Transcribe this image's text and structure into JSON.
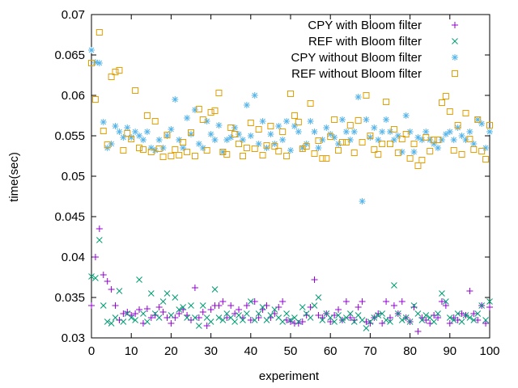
{
  "chart_data": {
    "type": "scatter",
    "title": "",
    "xlabel": "experiment",
    "ylabel": "time(sec)",
    "xlim": [
      0,
      100
    ],
    "ylim": [
      0.03,
      0.07
    ],
    "xticks": [
      "0",
      "10",
      "20",
      "30",
      "40",
      "50",
      "60",
      "70",
      "80",
      "90",
      "100"
    ],
    "yticks": [
      "0.03",
      "0.035",
      "0.04",
      "0.045",
      "0.05",
      "0.055",
      "0.06",
      "0.065",
      "0.07"
    ],
    "grid": false,
    "legend_position": "top-right",
    "series": [
      {
        "name": "CPY with Bloom filter",
        "marker": "plus",
        "color": "#9400d3",
        "x": [
          0,
          1,
          2,
          3,
          4,
          5,
          6,
          7,
          8,
          9,
          10,
          11,
          12,
          13,
          14,
          15,
          16,
          17,
          18,
          19,
          20,
          21,
          22,
          23,
          24,
          25,
          26,
          27,
          28,
          29,
          30,
          31,
          32,
          33,
          34,
          35,
          36,
          37,
          38,
          39,
          40,
          41,
          42,
          43,
          44,
          45,
          46,
          47,
          48,
          49,
          50,
          51,
          52,
          53,
          54,
          55,
          56,
          57,
          58,
          59,
          60,
          61,
          62,
          63,
          64,
          65,
          66,
          67,
          68,
          69,
          70,
          71,
          72,
          73,
          74,
          75,
          76,
          77,
          78,
          79,
          80,
          81,
          82,
          83,
          84,
          85,
          86,
          87,
          88,
          89,
          90,
          91,
          92,
          93,
          94,
          95,
          96,
          97,
          98,
          99,
          100
        ],
        "values": [
          0.034,
          0.04,
          0.0435,
          0.0378,
          0.037,
          0.036,
          0.034,
          0.0322,
          0.033,
          0.0332,
          0.0328,
          0.033,
          0.0335,
          0.0318,
          0.0336,
          0.0325,
          0.0328,
          0.0338,
          0.0332,
          0.0325,
          0.0318,
          0.0325,
          0.033,
          0.0335,
          0.0328,
          0.0322,
          0.0362,
          0.0325,
          0.0332,
          0.0315,
          0.0335,
          0.034,
          0.034,
          0.0345,
          0.0325,
          0.034,
          0.033,
          0.0335,
          0.0325,
          0.034,
          0.0322,
          0.0345,
          0.0325,
          0.0335,
          0.034,
          0.0325,
          0.033,
          0.0338,
          0.0345,
          0.0322,
          0.032,
          0.0318,
          0.0318,
          0.032,
          0.0328,
          0.0338,
          0.0372,
          0.0328,
          0.0325,
          0.033,
          0.032,
          0.0328,
          0.0335,
          0.0322,
          0.0345,
          0.0325,
          0.0322,
          0.0338,
          0.0345,
          0.032,
          0.0318,
          0.0325,
          0.033,
          0.0318,
          0.0345,
          0.0325,
          0.034,
          0.033,
          0.0345,
          0.0325,
          0.032,
          0.0338,
          0.0308,
          0.0325,
          0.0322,
          0.0318,
          0.0328,
          0.0325,
          0.0345,
          0.034,
          0.0318,
          0.0325,
          0.0322,
          0.033,
          0.0328,
          0.0358,
          0.033,
          0.0322,
          0.034,
          0.0318,
          0.0338
        ]
      },
      {
        "name": "REF with Bloom filter",
        "marker": "x",
        "color": "#009e73",
        "x": [
          0,
          1,
          2,
          3,
          4,
          5,
          6,
          7,
          8,
          9,
          10,
          11,
          12,
          13,
          14,
          15,
          16,
          17,
          18,
          19,
          20,
          21,
          22,
          23,
          24,
          25,
          26,
          27,
          28,
          29,
          30,
          31,
          32,
          33,
          34,
          35,
          36,
          37,
          38,
          39,
          40,
          41,
          42,
          43,
          44,
          45,
          46,
          47,
          48,
          49,
          50,
          51,
          52,
          53,
          54,
          55,
          56,
          57,
          58,
          59,
          60,
          61,
          62,
          63,
          64,
          65,
          66,
          67,
          68,
          69,
          70,
          71,
          72,
          73,
          74,
          75,
          76,
          77,
          78,
          79,
          80,
          81,
          82,
          83,
          84,
          85,
          86,
          87,
          88,
          89,
          90,
          91,
          92,
          93,
          94,
          95,
          96,
          97,
          98,
          99,
          100
        ],
        "values": [
          0.0376,
          0.0374,
          0.0421,
          0.034,
          0.032,
          0.0318,
          0.0325,
          0.0358,
          0.032,
          0.033,
          0.0325,
          0.0322,
          0.0372,
          0.033,
          0.032,
          0.0355,
          0.033,
          0.0325,
          0.0345,
          0.0355,
          0.0328,
          0.035,
          0.0335,
          0.0338,
          0.0325,
          0.034,
          0.0325,
          0.0315,
          0.034,
          0.0325,
          0.032,
          0.036,
          0.0325,
          0.0322,
          0.033,
          0.0325,
          0.032,
          0.0328,
          0.0322,
          0.033,
          0.0345,
          0.0322,
          0.033,
          0.0338,
          0.0322,
          0.0328,
          0.0335,
          0.0325,
          0.032,
          0.033,
          0.0322,
          0.0325,
          0.032,
          0.0338,
          0.033,
          0.0325,
          0.034,
          0.035,
          0.0322,
          0.033,
          0.0325,
          0.032,
          0.0328,
          0.0322,
          0.0325,
          0.033,
          0.032,
          0.0328,
          0.0322,
          0.0312,
          0.032,
          0.0325,
          0.0328,
          0.033,
          0.0322,
          0.032,
          0.0365,
          0.033,
          0.0322,
          0.0325,
          0.032,
          0.034,
          0.033,
          0.0322,
          0.0328,
          0.0325,
          0.032,
          0.033,
          0.0355,
          0.0345,
          0.0325,
          0.0322,
          0.033,
          0.032,
          0.0328,
          0.0325,
          0.0322,
          0.033,
          0.034,
          0.0322,
          0.0345
        ]
      },
      {
        "name": "CPY without Bloom filter",
        "marker": "star",
        "color": "#56b4e9",
        "x": [
          0,
          1,
          2,
          3,
          4,
          5,
          6,
          7,
          8,
          9,
          10,
          11,
          12,
          13,
          14,
          15,
          16,
          17,
          18,
          19,
          20,
          21,
          22,
          23,
          24,
          25,
          26,
          27,
          28,
          29,
          30,
          31,
          32,
          33,
          34,
          35,
          36,
          37,
          38,
          39,
          40,
          41,
          42,
          43,
          44,
          45,
          46,
          47,
          48,
          49,
          50,
          51,
          52,
          53,
          54,
          55,
          56,
          57,
          58,
          59,
          60,
          61,
          62,
          63,
          64,
          65,
          66,
          67,
          68,
          69,
          70,
          71,
          72,
          73,
          74,
          75,
          76,
          77,
          78,
          79,
          80,
          81,
          82,
          83,
          84,
          85,
          86,
          87,
          88,
          89,
          90,
          91,
          92,
          93,
          94,
          95,
          96,
          97,
          98,
          99,
          100
        ],
        "values": [
          0.0656,
          0.0641,
          0.064,
          0.0567,
          0.0535,
          0.054,
          0.0562,
          0.0555,
          0.0548,
          0.056,
          0.0548,
          0.0555,
          0.055,
          0.0545,
          0.0555,
          0.0535,
          0.0532,
          0.0545,
          0.0535,
          0.055,
          0.0558,
          0.0595,
          0.0545,
          0.0535,
          0.0572,
          0.0552,
          0.0582,
          0.054,
          0.0535,
          0.0568,
          0.0552,
          0.0545,
          0.0563,
          0.053,
          0.0545,
          0.0548,
          0.056,
          0.0552,
          0.0545,
          0.0588,
          0.055,
          0.06,
          0.054,
          0.0568,
          0.0535,
          0.0552,
          0.054,
          0.0562,
          0.0545,
          0.0568,
          0.0532,
          0.0562,
          0.0555,
          0.0535,
          0.054,
          0.0568,
          0.0555,
          0.0535,
          0.0545,
          0.056,
          0.0552,
          0.0548,
          0.054,
          0.057,
          0.0555,
          0.0545,
          0.0555,
          0.0598,
          0.0469,
          0.057,
          0.0548,
          0.056,
          0.0545,
          0.0555,
          0.057,
          0.0555,
          0.0545,
          0.055,
          0.053,
          0.0575,
          0.0555,
          0.053,
          0.0548,
          0.0545,
          0.0555,
          0.0545,
          0.054,
          0.0535,
          0.0545,
          0.0552,
          0.0555,
          0.0545,
          0.056,
          0.055,
          0.0545,
          0.0555,
          0.054,
          0.057,
          0.0565,
          0.0535,
          0.0555
        ]
      },
      {
        "name": "REF without Bloom filter",
        "marker": "square",
        "color": "#e69f00",
        "x": [
          0,
          1,
          2,
          3,
          4,
          5,
          6,
          7,
          8,
          9,
          10,
          11,
          12,
          13,
          14,
          15,
          16,
          17,
          18,
          19,
          20,
          21,
          22,
          23,
          24,
          25,
          26,
          27,
          28,
          29,
          30,
          31,
          32,
          33,
          34,
          35,
          36,
          37,
          38,
          39,
          40,
          41,
          42,
          43,
          44,
          45,
          46,
          47,
          48,
          49,
          50,
          51,
          52,
          53,
          54,
          55,
          56,
          57,
          58,
          59,
          60,
          61,
          62,
          63,
          64,
          65,
          66,
          67,
          68,
          69,
          70,
          71,
          72,
          73,
          74,
          75,
          76,
          77,
          78,
          79,
          80,
          81,
          82,
          83,
          84,
          85,
          86,
          87,
          88,
          89,
          90,
          91,
          92,
          93,
          94,
          95,
          96,
          97,
          98,
          99,
          100
        ],
        "values": [
          0.064,
          0.0595,
          0.0678,
          0.0556,
          0.0539,
          0.0623,
          0.0629,
          0.0631,
          0.0532,
          0.0553,
          0.0546,
          0.0606,
          0.0535,
          0.0533,
          0.0575,
          0.053,
          0.0568,
          0.0534,
          0.0524,
          0.0551,
          0.0525,
          0.0533,
          0.0526,
          0.0542,
          0.053,
          0.0554,
          0.0525,
          0.0583,
          0.057,
          0.0532,
          0.0579,
          0.0581,
          0.0603,
          0.053,
          0.0527,
          0.056,
          0.0552,
          0.054,
          0.0525,
          0.0535,
          0.0566,
          0.0534,
          0.0558,
          0.0526,
          0.0538,
          0.0562,
          0.0537,
          0.0531,
          0.0555,
          0.0525,
          0.0602,
          0.0575,
          0.0567,
          0.0534,
          0.0537,
          0.059,
          0.0528,
          0.0544,
          0.0522,
          0.0522,
          0.0549,
          0.057,
          0.0532,
          0.0542,
          0.0542,
          0.0563,
          0.0529,
          0.0569,
          0.0542,
          0.06,
          0.055,
          0.0533,
          0.0527,
          0.054,
          0.0592,
          0.054,
          0.0558,
          0.0529,
          0.0546,
          0.0552,
          0.0522,
          0.054,
          0.0513,
          0.052,
          0.0548,
          0.0531,
          0.0545,
          0.0545,
          0.0591,
          0.0599,
          0.058,
          0.0532,
          0.0563,
          0.0527,
          0.0578,
          0.0546,
          0.0533,
          0.057,
          0.0531,
          0.0521,
          0.0563
        ]
      }
    ]
  }
}
